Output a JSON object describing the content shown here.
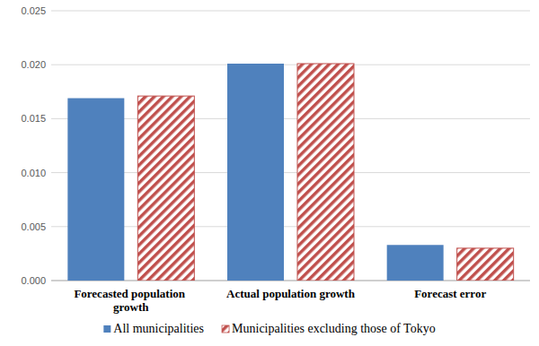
{
  "chart_data": {
    "type": "bar",
    "categories": [
      "Forecasted population growth",
      "Actual population growth",
      "Forecast error"
    ],
    "series": [
      {
        "name": "All municipalities",
        "color": "#4f81bd",
        "values": [
          0.0169,
          0.0201,
          0.0033
        ]
      },
      {
        "name": "Municipalities excluding those of Tokyo",
        "color": "#c0504d",
        "values": [
          0.0171,
          0.0201,
          0.003
        ]
      }
    ],
    "ylim": [
      0,
      0.025
    ],
    "yticks": [
      {
        "value": 0,
        "label": "0.000"
      },
      {
        "value": 0.005,
        "label": "0.005"
      },
      {
        "value": 0.01,
        "label": "0.010"
      },
      {
        "value": 0.015,
        "label": "0.015"
      },
      {
        "value": 0.02,
        "label": "0.020"
      },
      {
        "value": 0.025,
        "label": "0.025"
      }
    ],
    "grid": true,
    "legend": "bottom"
  }
}
